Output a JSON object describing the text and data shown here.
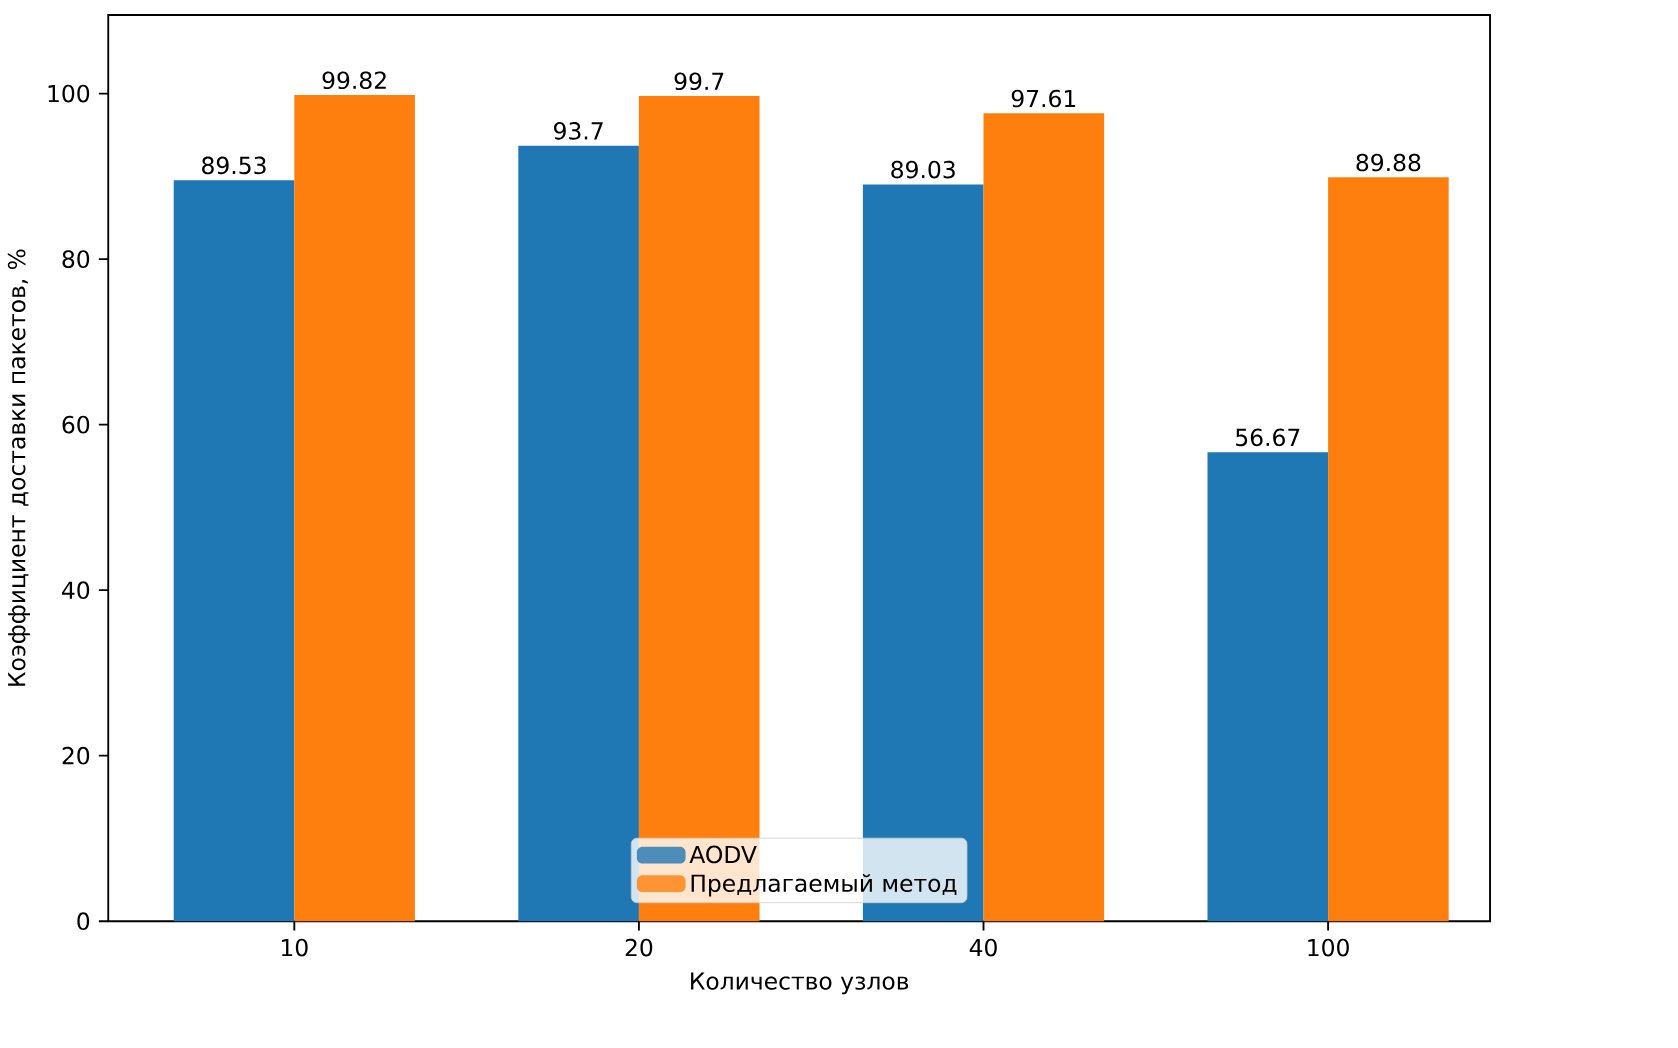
{
  "chart_data": {
    "type": "bar",
    "xlabel": "Количество узлов",
    "ylabel": "Коэффициент доставки пакетов, %",
    "categories": [
      "10",
      "20",
      "40",
      "100"
    ],
    "series": [
      {
        "name": "AODV",
        "color": "#1f77b4",
        "values": [
          89.53,
          93.7,
          89.03,
          56.67
        ],
        "value_labels": [
          "89.53",
          "93.7",
          "89.03",
          "56.67"
        ]
      },
      {
        "name": "Предлагаемый метод",
        "color": "#ff7f0e",
        "values": [
          99.82,
          99.7,
          97.61,
          89.88
        ],
        "value_labels": [
          "99.82",
          "99.7",
          "97.61",
          "89.88"
        ]
      }
    ],
    "ylim": [
      0,
      109.5
    ],
    "yticks": [
      0,
      20,
      40,
      60,
      80,
      100
    ],
    "grid": false,
    "legend": "bottom"
  }
}
